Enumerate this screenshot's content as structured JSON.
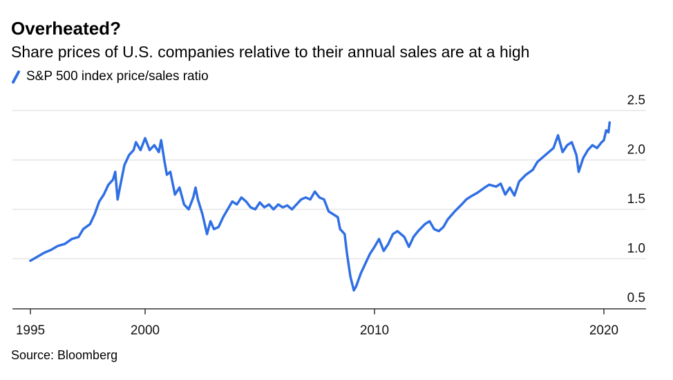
{
  "title": "Overheated?",
  "subtitle": "Share prices of U.S. companies relative to their annual sales are at a high",
  "source": "Source: Bloomberg",
  "colors": {
    "series": "#2F6FE4",
    "grid": "#E6E6E6",
    "axis": "#333333"
  },
  "chart_data": {
    "type": "line",
    "title": "Overheated?",
    "subtitle": "Share prices of U.S. companies relative to their annual sales are at a high",
    "xlabel": "",
    "ylabel": "",
    "xlim": [
      1995,
      2021.8
    ],
    "ylim": [
      0.5,
      2.5
    ],
    "yticks": [
      "0.5",
      "1.0",
      "1.5",
      "2.0",
      "2.5"
    ],
    "xticks": [
      "1995",
      "2000",
      "2010",
      "2020"
    ],
    "grid": true,
    "legend": "top-left",
    "series": [
      {
        "name": "S&P 500 index price/sales ratio",
        "color": "#2F6FE4",
        "points": [
          [
            1995.0,
            0.98
          ],
          [
            1995.3,
            1.02
          ],
          [
            1995.6,
            1.06
          ],
          [
            1995.9,
            1.09
          ],
          [
            1996.2,
            1.13
          ],
          [
            1996.5,
            1.15
          ],
          [
            1996.8,
            1.2
          ],
          [
            1997.1,
            1.22
          ],
          [
            1997.3,
            1.3
          ],
          [
            1997.6,
            1.35
          ],
          [
            1997.8,
            1.45
          ],
          [
            1998.0,
            1.58
          ],
          [
            1998.2,
            1.65
          ],
          [
            1998.4,
            1.75
          ],
          [
            1998.6,
            1.8
          ],
          [
            1998.7,
            1.88
          ],
          [
            1998.8,
            1.6
          ],
          [
            1998.9,
            1.72
          ],
          [
            1999.1,
            1.95
          ],
          [
            1999.3,
            2.05
          ],
          [
            1999.5,
            2.1
          ],
          [
            1999.6,
            2.18
          ],
          [
            1999.8,
            2.1
          ],
          [
            2000.0,
            2.22
          ],
          [
            2000.2,
            2.1
          ],
          [
            2000.4,
            2.15
          ],
          [
            2000.6,
            2.08
          ],
          [
            2000.7,
            2.2
          ],
          [
            2000.85,
            1.98
          ],
          [
            2000.95,
            1.85
          ],
          [
            2001.1,
            1.88
          ],
          [
            2001.3,
            1.65
          ],
          [
            2001.5,
            1.72
          ],
          [
            2001.7,
            1.55
          ],
          [
            2001.9,
            1.5
          ],
          [
            2002.1,
            1.62
          ],
          [
            2002.2,
            1.72
          ],
          [
            2002.3,
            1.6
          ],
          [
            2002.5,
            1.45
          ],
          [
            2002.7,
            1.25
          ],
          [
            2002.85,
            1.38
          ],
          [
            2003.0,
            1.3
          ],
          [
            2003.2,
            1.32
          ],
          [
            2003.4,
            1.42
          ],
          [
            2003.6,
            1.5
          ],
          [
            2003.8,
            1.58
          ],
          [
            2004.0,
            1.55
          ],
          [
            2004.2,
            1.62
          ],
          [
            2004.4,
            1.58
          ],
          [
            2004.6,
            1.52
          ],
          [
            2004.8,
            1.5
          ],
          [
            2005.0,
            1.57
          ],
          [
            2005.2,
            1.52
          ],
          [
            2005.4,
            1.55
          ],
          [
            2005.6,
            1.5
          ],
          [
            2005.8,
            1.55
          ],
          [
            2006.0,
            1.52
          ],
          [
            2006.2,
            1.54
          ],
          [
            2006.4,
            1.5
          ],
          [
            2006.6,
            1.55
          ],
          [
            2006.8,
            1.6
          ],
          [
            2007.0,
            1.62
          ],
          [
            2007.2,
            1.6
          ],
          [
            2007.4,
            1.68
          ],
          [
            2007.6,
            1.62
          ],
          [
            2007.8,
            1.6
          ],
          [
            2008.0,
            1.48
          ],
          [
            2008.2,
            1.45
          ],
          [
            2008.4,
            1.42
          ],
          [
            2008.5,
            1.3
          ],
          [
            2008.7,
            1.25
          ],
          [
            2008.8,
            1.05
          ],
          [
            2008.95,
            0.82
          ],
          [
            2009.1,
            0.68
          ],
          [
            2009.2,
            0.72
          ],
          [
            2009.4,
            0.85
          ],
          [
            2009.6,
            0.95
          ],
          [
            2009.8,
            1.05
          ],
          [
            2010.0,
            1.12
          ],
          [
            2010.2,
            1.2
          ],
          [
            2010.4,
            1.08
          ],
          [
            2010.6,
            1.15
          ],
          [
            2010.8,
            1.25
          ],
          [
            2011.0,
            1.28
          ],
          [
            2011.3,
            1.22
          ],
          [
            2011.5,
            1.12
          ],
          [
            2011.7,
            1.22
          ],
          [
            2011.9,
            1.28
          ],
          [
            2012.2,
            1.35
          ],
          [
            2012.4,
            1.38
          ],
          [
            2012.6,
            1.3
          ],
          [
            2012.8,
            1.28
          ],
          [
            2013.0,
            1.32
          ],
          [
            2013.2,
            1.4
          ],
          [
            2013.5,
            1.48
          ],
          [
            2013.8,
            1.55
          ],
          [
            2014.0,
            1.6
          ],
          [
            2014.2,
            1.63
          ],
          [
            2014.5,
            1.67
          ],
          [
            2014.8,
            1.72
          ],
          [
            2015.0,
            1.75
          ],
          [
            2015.3,
            1.73
          ],
          [
            2015.5,
            1.76
          ],
          [
            2015.7,
            1.65
          ],
          [
            2015.9,
            1.72
          ],
          [
            2016.1,
            1.64
          ],
          [
            2016.3,
            1.78
          ],
          [
            2016.6,
            1.85
          ],
          [
            2016.9,
            1.9
          ],
          [
            2017.1,
            1.98
          ],
          [
            2017.3,
            2.02
          ],
          [
            2017.6,
            2.08
          ],
          [
            2017.8,
            2.12
          ],
          [
            2018.0,
            2.25
          ],
          [
            2018.2,
            2.08
          ],
          [
            2018.4,
            2.15
          ],
          [
            2018.6,
            2.18
          ],
          [
            2018.8,
            2.05
          ],
          [
            2018.9,
            1.88
          ],
          [
            2019.1,
            2.02
          ],
          [
            2019.3,
            2.1
          ],
          [
            2019.5,
            2.15
          ],
          [
            2019.7,
            2.12
          ],
          [
            2019.9,
            2.18
          ],
          [
            2020.0,
            2.2
          ],
          [
            2020.1,
            2.3
          ],
          [
            2020.2,
            2.28
          ],
          [
            2020.25,
            2.38
          ]
        ]
      }
    ]
  }
}
